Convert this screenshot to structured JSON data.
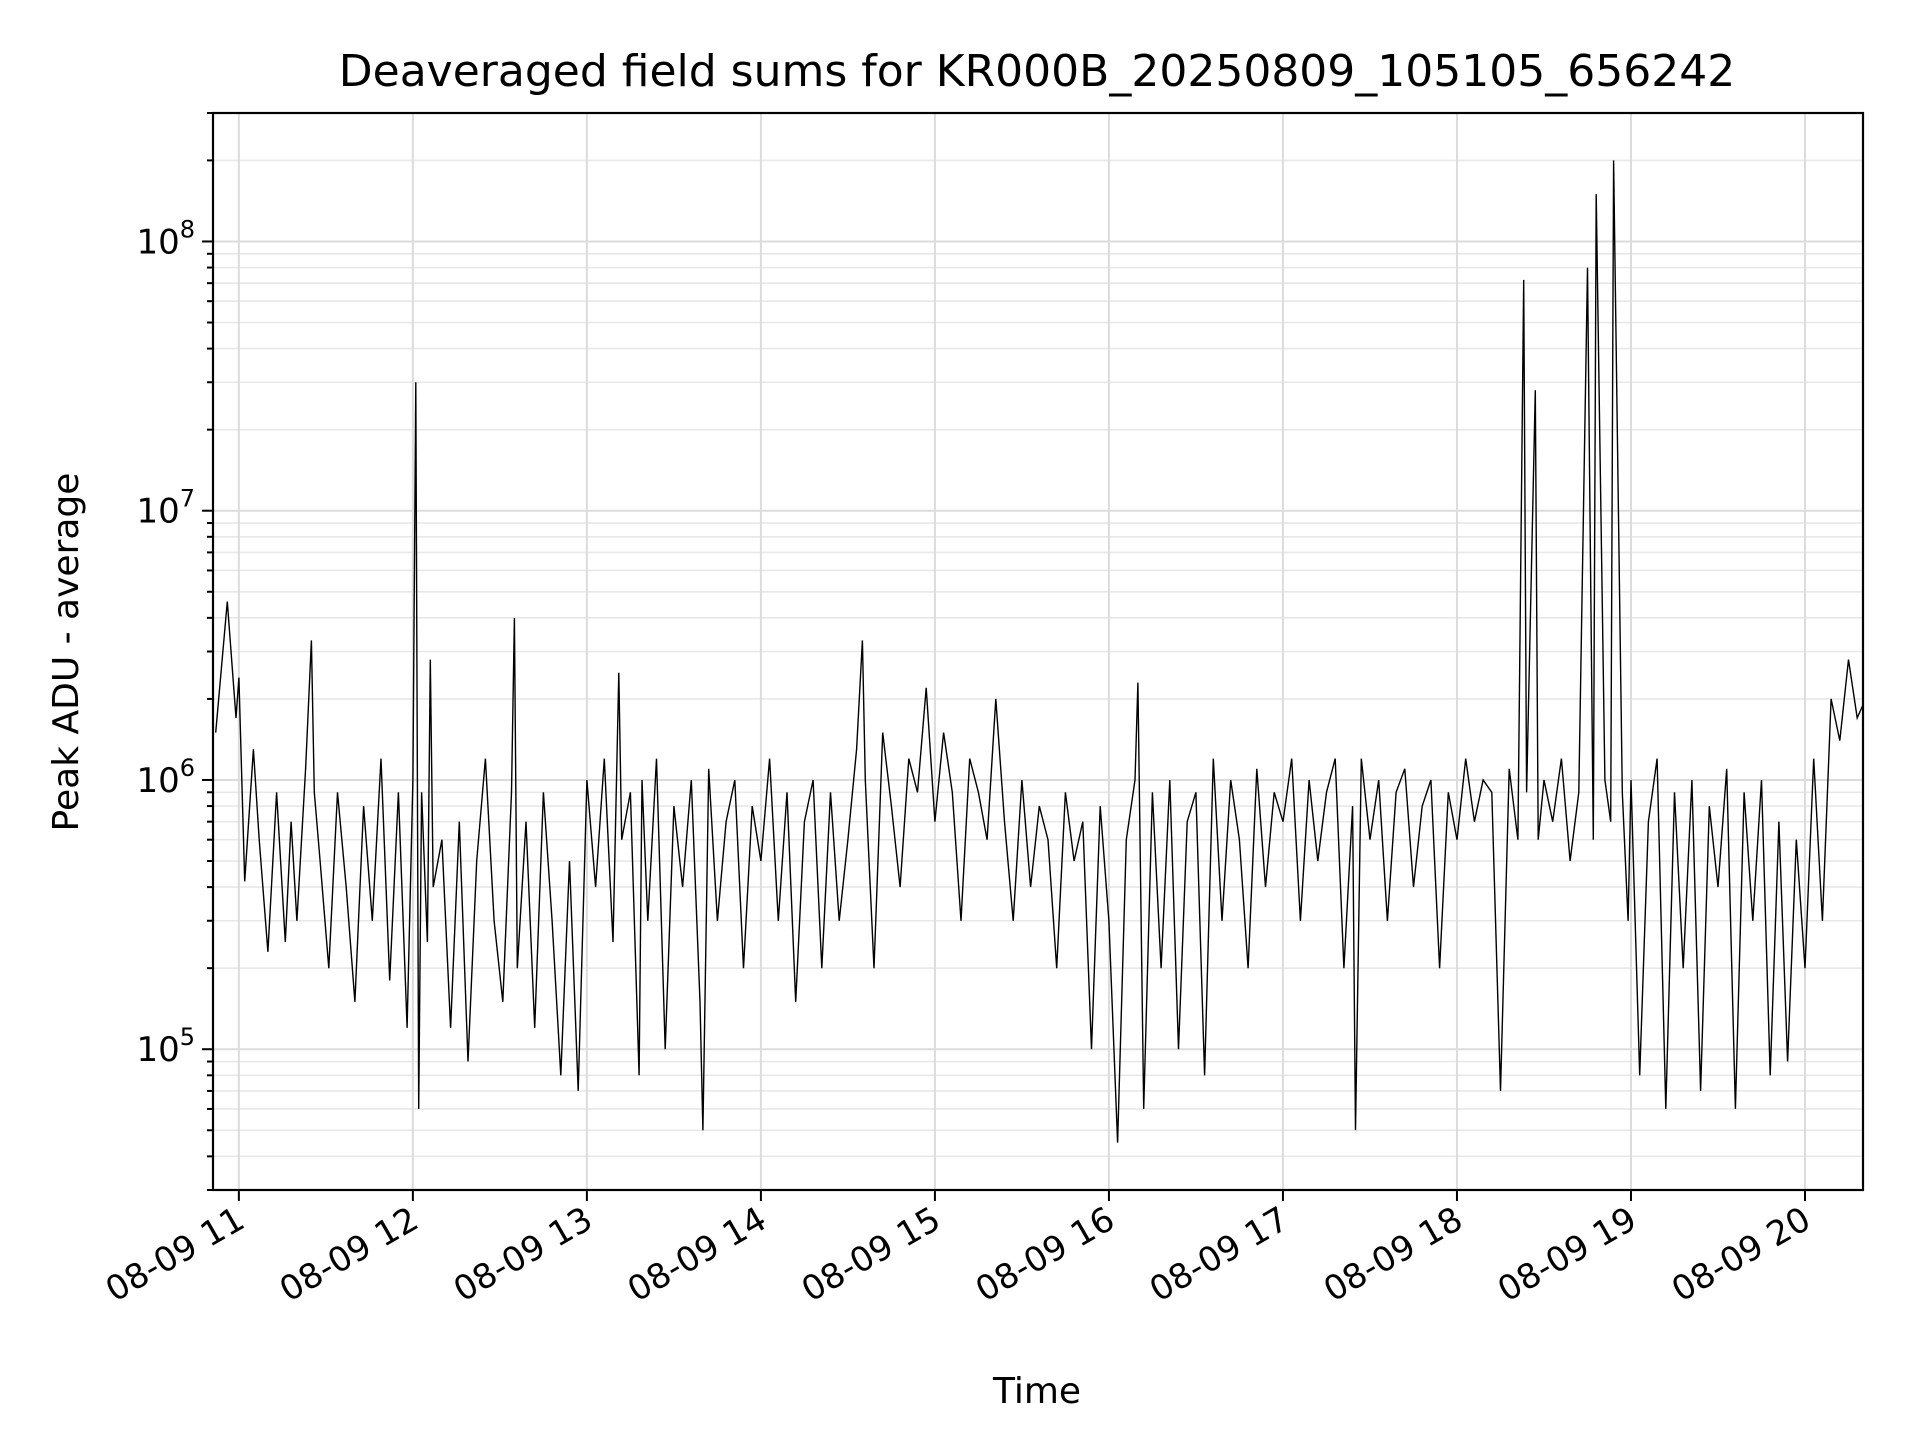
{
  "chart_data": {
    "type": "line",
    "title": "Deaveraged field sums for KR000B_20250809_105105_656242",
    "xlabel": "Time",
    "ylabel": "Peak ADU - average",
    "yscale": "log",
    "ylim": [
      30000,
      300000000
    ],
    "xlim": [
      "2025-08-09T10:51:05",
      "2025-08-09T20:20:00"
    ],
    "x_ticks": [
      {
        "time": "2025-08-09T11:00:00",
        "label": "08-09 11"
      },
      {
        "time": "2025-08-09T12:00:00",
        "label": "08-09 12"
      },
      {
        "time": "2025-08-09T13:00:00",
        "label": "08-09 13"
      },
      {
        "time": "2025-08-09T14:00:00",
        "label": "08-09 14"
      },
      {
        "time": "2025-08-09T15:00:00",
        "label": "08-09 15"
      },
      {
        "time": "2025-08-09T16:00:00",
        "label": "08-09 16"
      },
      {
        "time": "2025-08-09T17:00:00",
        "label": "08-09 17"
      },
      {
        "time": "2025-08-09T18:00:00",
        "label": "08-09 18"
      },
      {
        "time": "2025-08-09T19:00:00",
        "label": "08-09 19"
      },
      {
        "time": "2025-08-09T20:00:00",
        "label": "08-09 20"
      }
    ],
    "y_ticks": [
      {
        "value": 100000,
        "base": "10",
        "exponent": "5"
      },
      {
        "value": 1000000,
        "base": "10",
        "exponent": "6"
      },
      {
        "value": 10000000,
        "base": "10",
        "exponent": "7"
      },
      {
        "value": 100000000,
        "base": "10",
        "exponent": "8"
      }
    ],
    "grid": true,
    "line_color": "#000000",
    "series": [
      {
        "x": [
          "2025-08-09T10:52:00",
          "2025-08-09T10:56:00",
          "2025-08-09T10:59:00",
          "2025-08-09T11:00:00",
          "2025-08-09T11:02:00",
          "2025-08-09T11:05:00",
          "2025-08-09T11:07:00",
          "2025-08-09T11:10:00",
          "2025-08-09T11:13:00",
          "2025-08-09T11:16:00",
          "2025-08-09T11:18:00",
          "2025-08-09T11:20:00",
          "2025-08-09T11:23:00",
          "2025-08-09T11:25:00",
          "2025-08-09T11:26:00",
          "2025-08-09T11:28:00",
          "2025-08-09T11:31:00",
          "2025-08-09T11:34:00",
          "2025-08-09T11:37:00",
          "2025-08-09T11:40:00",
          "2025-08-09T11:43:00",
          "2025-08-09T11:46:00",
          "2025-08-09T11:49:00",
          "2025-08-09T11:52:00",
          "2025-08-09T11:55:00",
          "2025-08-09T11:58:00",
          "2025-08-09T12:00:00",
          "2025-08-09T12:01:00",
          "2025-08-09T12:02:00",
          "2025-08-09T12:03:00",
          "2025-08-09T12:05:00",
          "2025-08-09T12:06:00",
          "2025-08-09T12:07:00",
          "2025-08-09T12:10:00",
          "2025-08-09T12:13:00",
          "2025-08-09T12:16:00",
          "2025-08-09T12:19:00",
          "2025-08-09T12:22:00",
          "2025-08-09T12:25:00",
          "2025-08-09T12:28:00",
          "2025-08-09T12:31:00",
          "2025-08-09T12:34:00",
          "2025-08-09T12:35:00",
          "2025-08-09T12:36:00",
          "2025-08-09T12:39:00",
          "2025-08-09T12:42:00",
          "2025-08-09T12:45:00",
          "2025-08-09T12:48:00",
          "2025-08-09T12:51:00",
          "2025-08-09T12:54:00",
          "2025-08-09T12:57:00",
          "2025-08-09T13:00:00",
          "2025-08-09T13:03:00",
          "2025-08-09T13:06:00",
          "2025-08-09T13:09:00",
          "2025-08-09T13:11:00",
          "2025-08-09T13:12:00",
          "2025-08-09T13:15:00",
          "2025-08-09T13:18:00",
          "2025-08-09T13:19:00",
          "2025-08-09T13:21:00",
          "2025-08-09T13:24:00",
          "2025-08-09T13:27:00",
          "2025-08-09T13:30:00",
          "2025-08-09T13:33:00",
          "2025-08-09T13:36:00",
          "2025-08-09T13:39:00",
          "2025-08-09T13:40:00",
          "2025-08-09T13:42:00",
          "2025-08-09T13:45:00",
          "2025-08-09T13:48:00",
          "2025-08-09T13:51:00",
          "2025-08-09T13:54:00",
          "2025-08-09T13:57:00",
          "2025-08-09T14:00:00",
          "2025-08-09T14:03:00",
          "2025-08-09T14:06:00",
          "2025-08-09T14:09:00",
          "2025-08-09T14:12:00",
          "2025-08-09T14:15:00",
          "2025-08-09T14:18:00",
          "2025-08-09T14:21:00",
          "2025-08-09T14:24:00",
          "2025-08-09T14:27:00",
          "2025-08-09T14:30:00",
          "2025-08-09T14:33:00",
          "2025-08-09T14:35:00",
          "2025-08-09T14:36:00",
          "2025-08-09T14:39:00",
          "2025-08-09T14:42:00",
          "2025-08-09T14:45:00",
          "2025-08-09T14:48:00",
          "2025-08-09T14:51:00",
          "2025-08-09T14:54:00",
          "2025-08-09T14:57:00",
          "2025-08-09T15:00:00",
          "2025-08-09T15:03:00",
          "2025-08-09T15:06:00",
          "2025-08-09T15:09:00",
          "2025-08-09T15:12:00",
          "2025-08-09T15:15:00",
          "2025-08-09T15:18:00",
          "2025-08-09T15:21:00",
          "2025-08-09T15:24:00",
          "2025-08-09T15:27:00",
          "2025-08-09T15:30:00",
          "2025-08-09T15:33:00",
          "2025-08-09T15:36:00",
          "2025-08-09T15:39:00",
          "2025-08-09T15:42:00",
          "2025-08-09T15:45:00",
          "2025-08-09T15:48:00",
          "2025-08-09T15:51:00",
          "2025-08-09T15:54:00",
          "2025-08-09T15:57:00",
          "2025-08-09T16:00:00",
          "2025-08-09T16:03:00",
          "2025-08-09T16:06:00",
          "2025-08-09T16:09:00",
          "2025-08-09T16:10:00",
          "2025-08-09T16:12:00",
          "2025-08-09T16:15:00",
          "2025-08-09T16:18:00",
          "2025-08-09T16:21:00",
          "2025-08-09T16:24:00",
          "2025-08-09T16:27:00",
          "2025-08-09T16:30:00",
          "2025-08-09T16:33:00",
          "2025-08-09T16:36:00",
          "2025-08-09T16:39:00",
          "2025-08-09T16:42:00",
          "2025-08-09T16:45:00",
          "2025-08-09T16:48:00",
          "2025-08-09T16:51:00",
          "2025-08-09T16:54:00",
          "2025-08-09T16:57:00",
          "2025-08-09T17:00:00",
          "2025-08-09T17:03:00",
          "2025-08-09T17:06:00",
          "2025-08-09T17:09:00",
          "2025-08-09T17:12:00",
          "2025-08-09T17:15:00",
          "2025-08-09T17:18:00",
          "2025-08-09T17:21:00",
          "2025-08-09T17:24:00",
          "2025-08-09T17:25:00",
          "2025-08-09T17:27:00",
          "2025-08-09T17:30:00",
          "2025-08-09T17:33:00",
          "2025-08-09T17:36:00",
          "2025-08-09T17:39:00",
          "2025-08-09T17:42:00",
          "2025-08-09T17:45:00",
          "2025-08-09T17:48:00",
          "2025-08-09T17:51:00",
          "2025-08-09T17:54:00",
          "2025-08-09T17:57:00",
          "2025-08-09T18:00:00",
          "2025-08-09T18:03:00",
          "2025-08-09T18:06:00",
          "2025-08-09T18:09:00",
          "2025-08-09T18:12:00",
          "2025-08-09T18:15:00",
          "2025-08-09T18:18:00",
          "2025-08-09T18:21:00",
          "2025-08-09T18:23:00",
          "2025-08-09T18:24:00",
          "2025-08-09T18:27:00",
          "2025-08-09T18:28:00",
          "2025-08-09T18:30:00",
          "2025-08-09T18:33:00",
          "2025-08-09T18:36:00",
          "2025-08-09T18:39:00",
          "2025-08-09T18:42:00",
          "2025-08-09T18:45:00",
          "2025-08-09T18:47:00",
          "2025-08-09T18:48:00",
          "2025-08-09T18:51:00",
          "2025-08-09T18:53:00",
          "2025-08-09T18:54:00",
          "2025-08-09T18:57:00",
          "2025-08-09T18:59:00",
          "2025-08-09T19:00:00",
          "2025-08-09T19:03:00",
          "2025-08-09T19:06:00",
          "2025-08-09T19:09:00",
          "2025-08-09T19:12:00",
          "2025-08-09T19:15:00",
          "2025-08-09T19:18:00",
          "2025-08-09T19:21:00",
          "2025-08-09T19:24:00",
          "2025-08-09T19:27:00",
          "2025-08-09T19:30:00",
          "2025-08-09T19:33:00",
          "2025-08-09T19:36:00",
          "2025-08-09T19:39:00",
          "2025-08-09T19:42:00",
          "2025-08-09T19:45:00",
          "2025-08-09T19:48:00",
          "2025-08-09T19:51:00",
          "2025-08-09T19:54:00",
          "2025-08-09T19:57:00",
          "2025-08-09T20:00:00",
          "2025-08-09T20:03:00",
          "2025-08-09T20:06:00",
          "2025-08-09T20:09:00",
          "2025-08-09T20:12:00",
          "2025-08-09T20:15:00",
          "2025-08-09T20:18:00",
          "2025-08-09T20:20:00"
        ],
        "values": [
          1500000,
          4600000,
          1700000,
          2400000,
          420000,
          1300000,
          600000,
          230000,
          900000,
          250000,
          700000,
          300000,
          1100000,
          3300000,
          900000,
          500000,
          200000,
          900000,
          400000,
          150000,
          800000,
          300000,
          1200000,
          180000,
          900000,
          120000,
          1000000,
          30000000,
          60000,
          900000,
          250000,
          2800000,
          400000,
          600000,
          120000,
          700000,
          90000,
          500000,
          1200000,
          300000,
          150000,
          900000,
          4000000,
          200000,
          700000,
          120000,
          900000,
          300000,
          80000,
          500000,
          70000,
          1000000,
          400000,
          1200000,
          250000,
          2500000,
          600000,
          900000,
          80000,
          1000000,
          300000,
          1200000,
          100000,
          800000,
          400000,
          1000000,
          150000,
          50000,
          1100000,
          300000,
          700000,
          1000000,
          200000,
          800000,
          500000,
          1200000,
          300000,
          900000,
          150000,
          700000,
          1000000,
          200000,
          900000,
          300000,
          600000,
          1300000,
          3300000,
          1000000,
          200000,
          1500000,
          800000,
          400000,
          1200000,
          900000,
          2200000,
          700000,
          1500000,
          900000,
          300000,
          1200000,
          900000,
          600000,
          2000000,
          700000,
          300000,
          1000000,
          400000,
          800000,
          600000,
          200000,
          900000,
          500000,
          700000,
          100000,
          800000,
          300000,
          45000,
          600000,
          1000000,
          2300000,
          60000,
          900000,
          200000,
          1000000,
          100000,
          700000,
          900000,
          80000,
          1200000,
          300000,
          1000000,
          600000,
          200000,
          1100000,
          400000,
          900000,
          700000,
          1200000,
          300000,
          1000000,
          500000,
          900000,
          1200000,
          200000,
          800000,
          50000,
          1200000,
          600000,
          1000000,
          300000,
          900000,
          1100000,
          400000,
          800000,
          1000000,
          200000,
          900000,
          600000,
          1200000,
          700000,
          1000000,
          900000,
          70000,
          1100000,
          600000,
          72000000,
          900000,
          28000000,
          600000,
          1000000,
          700000,
          1200000,
          500000,
          900000,
          80000000,
          600000,
          150000000,
          1000000,
          700000,
          200000000,
          900000,
          300000,
          1000000,
          80000,
          700000,
          1200000,
          60000,
          900000,
          200000,
          1000000,
          70000,
          800000,
          400000,
          1100000,
          60000,
          900000,
          300000,
          1000000,
          80000,
          700000,
          90000,
          600000,
          200000,
          1200000,
          300000,
          2000000,
          1400000,
          2800000,
          1700000,
          1900000
        ]
      }
    ]
  }
}
